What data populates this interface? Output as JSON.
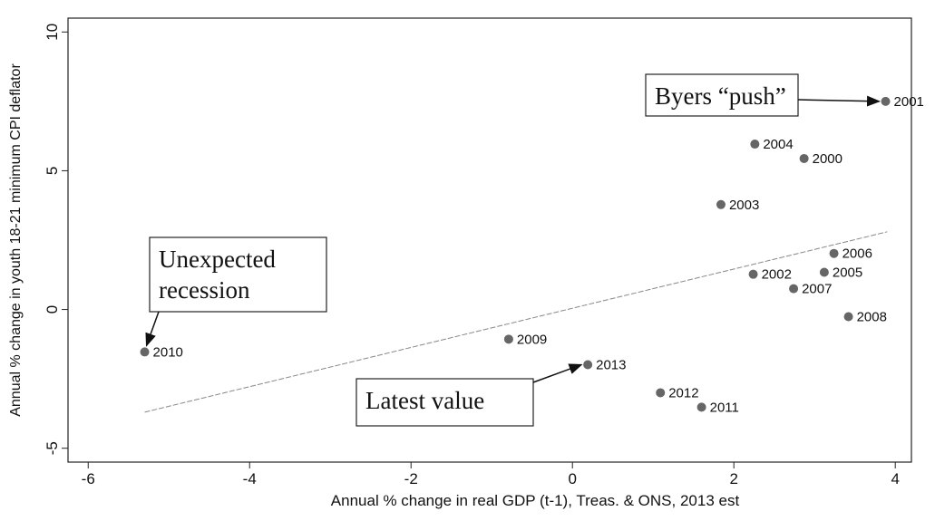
{
  "chart_data": {
    "type": "scatter",
    "x_label": "Annual % change in real GDP (t-1), Treas. & ONS, 2013 est",
    "y_label": "Annual % change in youth 18-21 minimum CPI deflator",
    "labels": [
      "2001",
      "2004",
      "2000",
      "2003",
      "2006",
      "2002",
      "2005",
      "2007",
      "2008",
      "2009",
      "2013",
      "2010",
      "2012",
      "2011"
    ],
    "x": [
      3.88,
      2.26,
      2.87,
      1.84,
      3.24,
      2.24,
      3.12,
      2.74,
      3.42,
      -0.79,
      0.19,
      -5.3,
      1.09,
      1.6
    ],
    "y": [
      7.5,
      5.96,
      5.44,
      3.78,
      2.02,
      1.27,
      1.34,
      0.75,
      -0.26,
      -1.07,
      -1.99,
      -1.53,
      -3.0,
      -3.52
    ],
    "color": "#666666",
    "fit_line": {
      "x": [
        -5.3,
        3.9
      ],
      "y": [
        -3.7,
        2.8
      ]
    },
    "xlim": [
      -6.25,
      4.2
    ],
    "ylim": [
      -5.5,
      10.5
    ],
    "xticks": [
      -6,
      -4,
      -2,
      0,
      2,
      4
    ],
    "yticks": [
      -5,
      0,
      5,
      10
    ],
    "annotations": [
      {
        "text": [
          "Byers “push”"
        ]
      },
      {
        "text": [
          "Unexpected",
          "recession"
        ]
      },
      {
        "text": [
          "Latest value"
        ]
      }
    ]
  }
}
